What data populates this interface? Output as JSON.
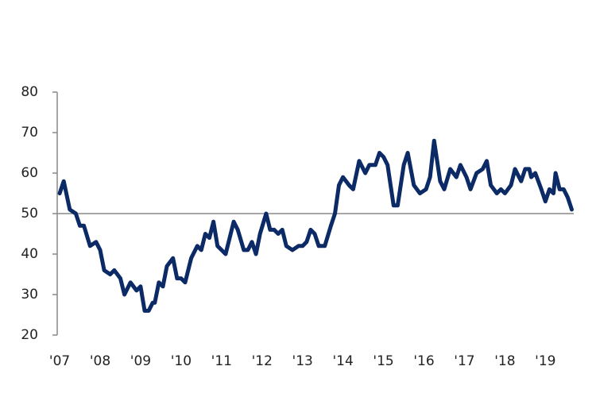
{
  "chart_data": {
    "type": "line",
    "x": [
      2007.0,
      2007.1,
      2007.25,
      2007.4,
      2007.5,
      2007.6,
      2007.75,
      2007.9,
      2008.0,
      2008.1,
      2008.25,
      2008.35,
      2008.5,
      2008.6,
      2008.75,
      2008.9,
      2009.0,
      2009.1,
      2009.2,
      2009.3,
      2009.35,
      2009.45,
      2009.55,
      2009.65,
      2009.8,
      2009.9,
      2010.0,
      2010.1,
      2010.25,
      2010.4,
      2010.5,
      2010.6,
      2010.7,
      2010.8,
      2010.9,
      2011.0,
      2011.1,
      2011.2,
      2011.3,
      2011.4,
      2011.55,
      2011.65,
      2011.75,
      2011.85,
      2011.95,
      2012.1,
      2012.2,
      2012.3,
      2012.4,
      2012.5,
      2012.6,
      2012.75,
      2012.9,
      2013.0,
      2013.1,
      2013.2,
      2013.3,
      2013.4,
      2013.55,
      2013.7,
      2013.8,
      2013.9,
      2014.0,
      2014.15,
      2014.25,
      2014.4,
      2014.55,
      2014.65,
      2014.8,
      2014.9,
      2015.0,
      2015.1,
      2015.25,
      2015.35,
      2015.5,
      2015.6,
      2015.75,
      2015.9,
      2016.05,
      2016.15,
      2016.25,
      2016.4,
      2016.5,
      2016.65,
      2016.8,
      2016.9,
      2017.05,
      2017.15,
      2017.3,
      2017.45,
      2017.55,
      2017.65,
      2017.8,
      2017.9,
      2018.0,
      2018.15,
      2018.25,
      2018.4,
      2018.5,
      2018.6,
      2018.65,
      2018.75,
      2018.9,
      2019.0,
      2019.1,
      2019.2,
      2019.25,
      2019.35,
      2019.45,
      2019.55,
      2019.65
    ],
    "series": [
      {
        "color": "#0b2a66",
        "values": [
          55,
          58,
          51,
          50,
          47,
          47,
          42,
          43,
          41,
          36,
          35,
          36,
          34,
          30,
          33,
          31,
          32,
          26,
          26,
          28,
          28,
          33,
          32,
          37,
          39,
          34,
          34,
          33,
          39,
          42,
          41,
          45,
          44,
          48,
          42,
          41,
          40,
          44,
          48,
          46,
          41,
          41,
          43,
          40,
          45,
          50,
          46,
          46,
          45,
          46,
          42,
          41,
          42,
          42,
          43,
          46,
          45,
          42,
          42,
          47,
          50,
          57,
          59,
          57,
          56,
          63,
          60,
          62,
          62,
          65,
          64,
          62,
          52,
          52,
          62,
          65,
          57,
          55,
          56,
          59,
          68,
          58,
          56,
          61,
          59,
          62,
          59,
          56,
          60,
          61,
          63,
          57,
          55,
          56,
          55,
          57,
          61,
          58,
          61,
          61,
          59,
          60,
          56,
          53,
          56,
          55,
          60,
          56,
          56,
          54,
          51
        ]
      }
    ],
    "xlim": [
      2006.94,
      2019.7
    ],
    "xticks": [
      {
        "value": 2007,
        "label": "'07"
      },
      {
        "value": 2008,
        "label": "'08"
      },
      {
        "value": 2009,
        "label": "'09"
      },
      {
        "value": 2010,
        "label": "'10"
      },
      {
        "value": 2011,
        "label": "'11"
      },
      {
        "value": 2012,
        "label": "'12"
      },
      {
        "value": 2013,
        "label": "'13"
      },
      {
        "value": 2014,
        "label": "'14"
      },
      {
        "value": 2015,
        "label": "'15"
      },
      {
        "value": 2016,
        "label": "'16"
      },
      {
        "value": 2017,
        "label": "'17"
      },
      {
        "value": 2018,
        "label": "'18"
      },
      {
        "value": 2019,
        "label": "'19"
      }
    ],
    "ylim": [
      20,
      80
    ],
    "yticks": [
      20,
      30,
      40,
      50,
      60,
      70,
      80
    ],
    "reference_line": 50
  }
}
